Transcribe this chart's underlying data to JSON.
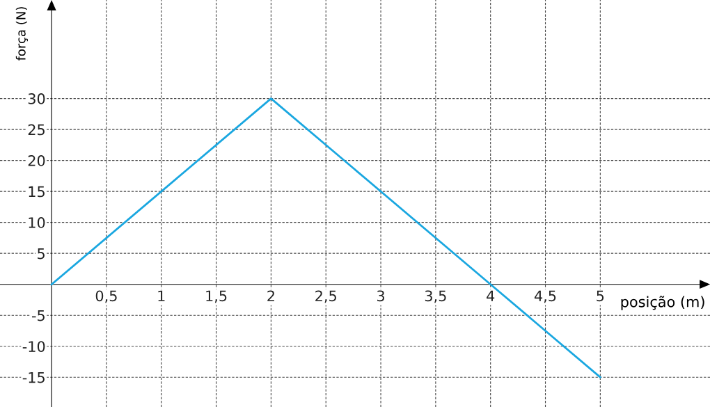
{
  "chart_data": {
    "type": "line",
    "xlabel": "posição (m)",
    "ylabel": "força (N)",
    "x": [
      0,
      2,
      4,
      5
    ],
    "series": [
      {
        "color": "#1aa7e0",
        "values": [
          0,
          30,
          0,
          -15
        ]
      }
    ],
    "xlim": [
      -0.47,
      6.0
    ],
    "ylim": [
      -19.8,
      45.9
    ],
    "xticks": [
      {
        "value": 0.5,
        "label": "0,5"
      },
      1,
      {
        "value": 1.5,
        "label": "1,5"
      },
      2,
      {
        "value": 2.5,
        "label": "2,5"
      },
      3,
      {
        "value": 3.5,
        "label": "3,5"
      },
      4,
      {
        "value": 4.5,
        "label": "4,5"
      },
      5
    ],
    "yticks": [
      -15,
      -10,
      -5,
      5,
      10,
      15,
      20,
      25,
      30
    ],
    "grid": true,
    "marker": "none",
    "line_style": "solid",
    "legend": false
  }
}
